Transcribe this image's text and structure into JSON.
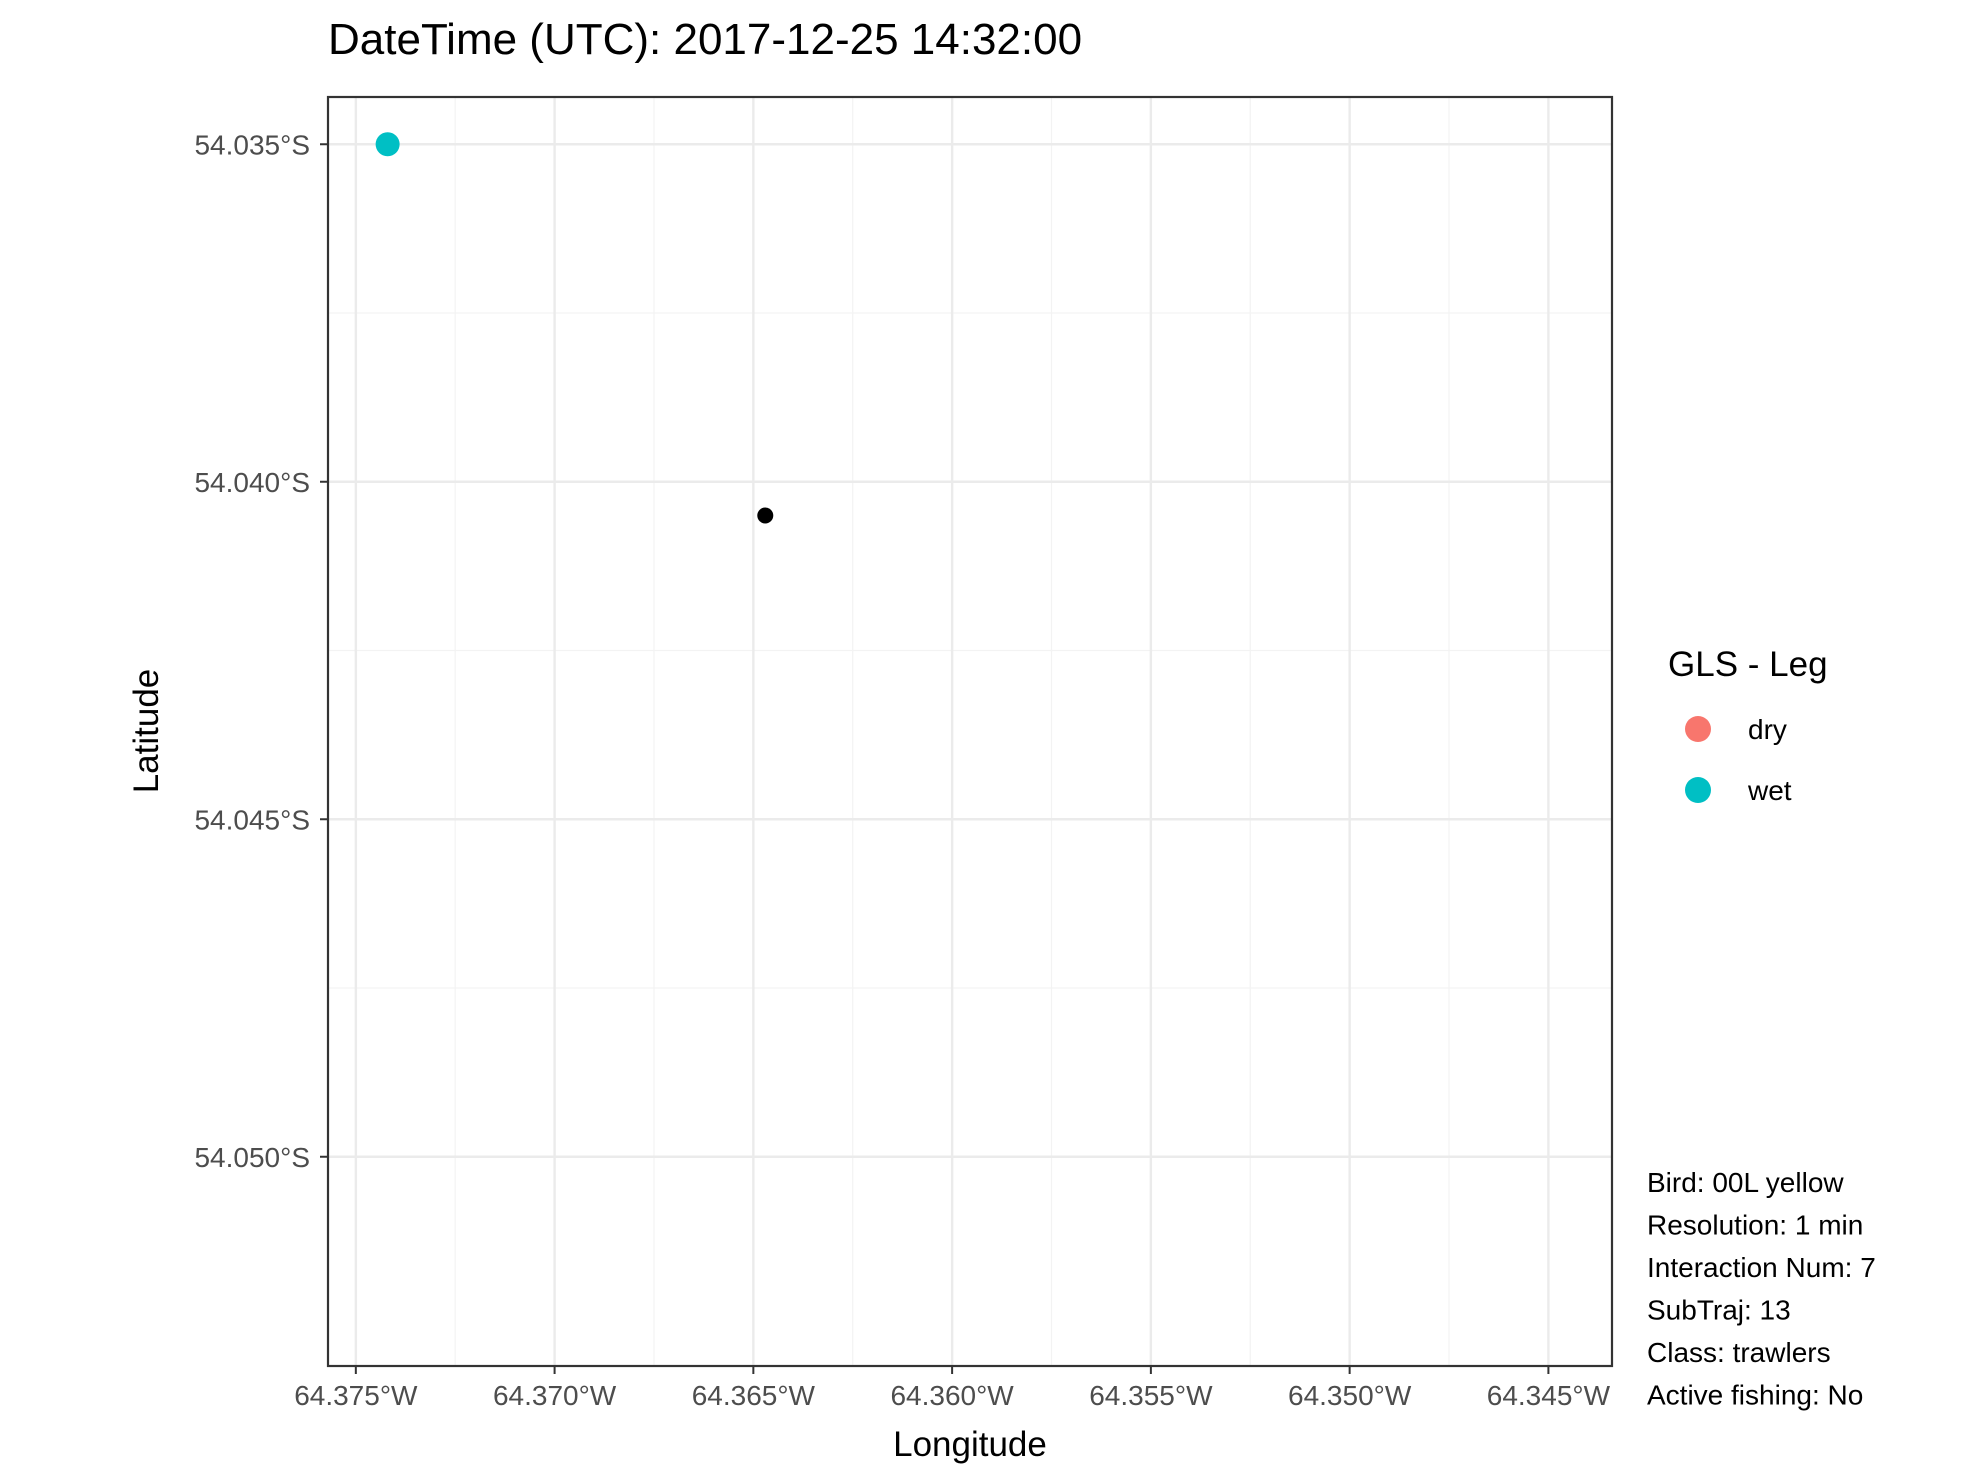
{
  "chart_data": {
    "type": "scatter",
    "title": "DateTime (UTC): 2017-12-25 14:32:00",
    "xlabel": "Longitude",
    "ylabel": "Latitude",
    "xlim": [
      -64.3757,
      -64.3434
    ],
    "ylim": [
      -54.0531,
      -54.0343
    ],
    "x_ticks": [
      -64.375,
      -64.37,
      -64.365,
      -64.36,
      -64.355,
      -64.35,
      -64.345
    ],
    "x_tick_labels": [
      "64.375°W",
      "64.370°W",
      "64.365°W",
      "64.360°W",
      "64.355°W",
      "64.350°W",
      "64.345°W"
    ],
    "y_ticks": [
      -54.035,
      -54.04,
      -54.045,
      -54.05
    ],
    "y_tick_labels": [
      "54.035°S",
      "54.040°S",
      "54.045°S",
      "54.050°S"
    ],
    "grid": true,
    "legend": {
      "title": "GLS - Leg",
      "placement": "right",
      "entries": [
        {
          "label": "dry",
          "color": "#F8766D"
        },
        {
          "label": "wet",
          "color": "#00BFC4"
        }
      ]
    },
    "series": [
      {
        "name": "wet",
        "color": "#00BFC4",
        "size": "large",
        "points": [
          {
            "x": -64.3742,
            "y": -54.035
          }
        ]
      },
      {
        "color": "#000000",
        "size": "small",
        "points": [
          {
            "x": -64.3647,
            "y": -54.0405
          }
        ]
      }
    ],
    "annotations": [
      "Bird: 00L yellow",
      "Resolution: 1 min",
      "Interaction Num: 7",
      "SubTraj: 13",
      "Class: trawlers",
      "Active fishing: No"
    ]
  }
}
